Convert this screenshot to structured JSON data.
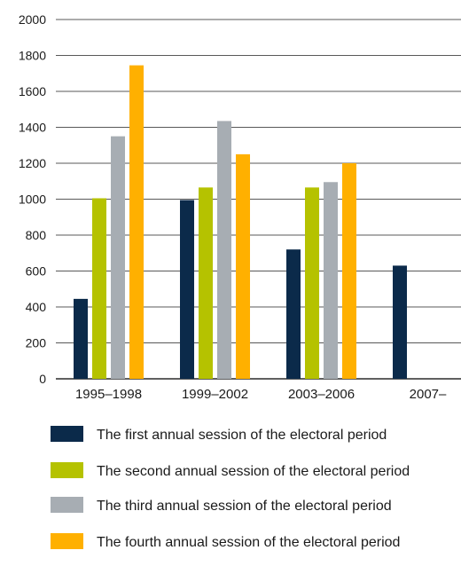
{
  "chart_data": {
    "type": "bar",
    "categories": [
      "1995–1998",
      "1999–2002",
      "2003–2006",
      "2007–"
    ],
    "series": [
      {
        "name": "The first annual session of the electoral period",
        "color": "#0b2a4a",
        "values": [
          445,
          995,
          720,
          630
        ]
      },
      {
        "name": "The second annual session of the electoral period",
        "color": "#b5c200",
        "values": [
          1005,
          1065,
          1065,
          null
        ]
      },
      {
        "name": "The third annual session of the electoral period",
        "color": "#a7adb3",
        "values": [
          1350,
          1435,
          1095,
          null
        ]
      },
      {
        "name": "The fourth annual session of the electoral period",
        "color": "#ffb000",
        "values": [
          1745,
          1250,
          1200,
          null
        ]
      }
    ],
    "ylim": [
      0,
      2000
    ],
    "yticks": [
      0,
      200,
      400,
      600,
      800,
      1000,
      1200,
      1400,
      1600,
      1800,
      2000
    ],
    "grid": true,
    "legend_position": "bottom",
    "title": "",
    "xlabel": "",
    "ylabel": ""
  }
}
